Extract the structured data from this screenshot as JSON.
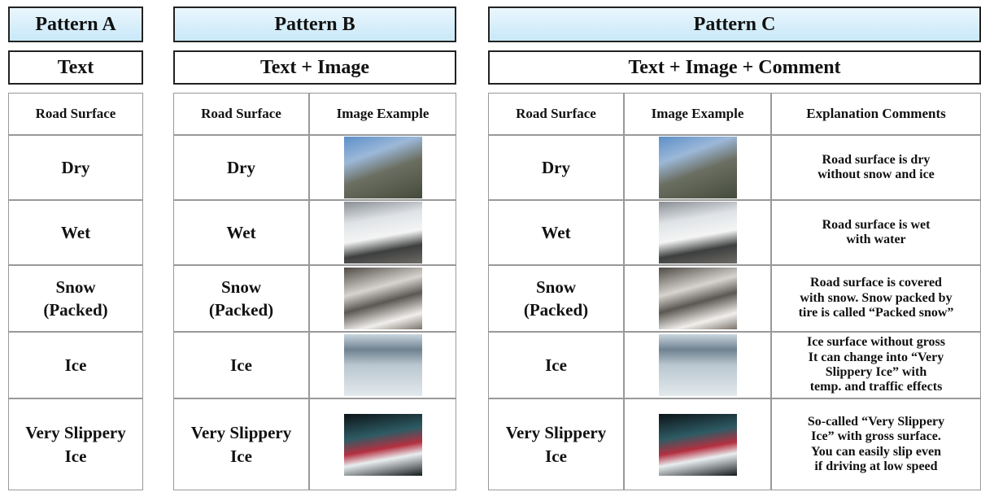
{
  "patterns": [
    {
      "title": "Pattern A",
      "subtitle": "Text",
      "header": [
        "Road Surface"
      ],
      "rows": [
        [
          "Dry"
        ],
        [
          "Wet"
        ],
        [
          "Snow\n(Packed)"
        ],
        [
          "Ice"
        ],
        [
          "Very Slippery\nIce"
        ]
      ]
    },
    {
      "title": "Pattern B",
      "subtitle": "Text + Image",
      "header": [
        "Road Surface",
        "Image Example"
      ],
      "rows": [
        [
          "Dry"
        ],
        [
          "Wet"
        ],
        [
          "Snow\n(Packed)"
        ],
        [
          "Ice"
        ],
        [
          "Very Slippery\nIce"
        ]
      ]
    },
    {
      "title": "Pattern C",
      "subtitle": "Text + Image + Comment",
      "header": [
        "Road Surface",
        "Image Example",
        "Explanation Comments"
      ],
      "rows": [
        [
          "Dry",
          "Road surface is dry\nwithout snow and ice"
        ],
        [
          "Wet",
          "Road surface is wet\nwith water"
        ],
        [
          "Snow\n(Packed)",
          "Road surface is covered\nwith snow. Snow packed by\ntire is called “Packed snow”"
        ],
        [
          "Ice",
          "Ice surface without gross\nIt can change into “Very\nSlippery Ice” with\ntemp. and traffic effects"
        ],
        [
          "Very Slippery\nIce",
          "So-called “Very Slippery\nIce” with gross surface.\nYou can easily slip even\nif driving at low speed"
        ]
      ]
    }
  ]
}
